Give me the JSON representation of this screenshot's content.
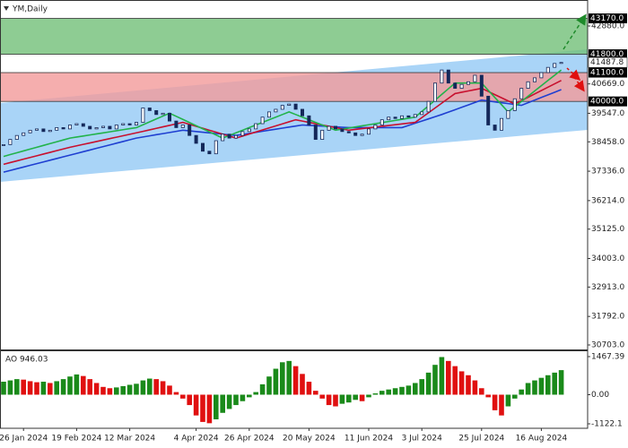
{
  "chart_data": [
    {
      "type": "candlestick",
      "title": "YM,Daily",
      "categories": [
        null,
        null,
        null,
        "26 Jan 2024",
        null,
        null,
        null,
        null,
        null,
        null,
        null,
        "19 Feb 2024",
        null,
        null,
        null,
        null,
        null,
        null,
        null,
        "12 Mar 2024",
        null,
        null,
        null,
        null,
        null,
        null,
        null,
        null,
        null,
        "4 Apr 2024",
        null,
        null,
        null,
        null,
        null,
        null,
        null,
        "26 Apr 2024",
        null,
        null,
        null,
        null,
        null,
        null,
        null,
        null,
        "20 May 2024",
        null,
        null,
        null,
        null,
        null,
        null,
        null,
        null,
        "11 Jun 2024",
        null,
        null,
        null,
        null,
        null,
        null,
        null,
        "3 Jul 2024",
        null,
        null,
        null,
        null,
        null,
        null,
        null,
        null,
        "25 Jul 2024",
        null,
        null,
        null,
        null,
        null,
        null,
        null,
        null,
        "16 Aug 2024",
        null,
        null,
        null
      ],
      "close": [
        38350,
        38550,
        38700,
        38800,
        38900,
        38950,
        38850,
        38900,
        39000,
        38950,
        39100,
        39150,
        39050,
        38950,
        39000,
        39050,
        38950,
        39100,
        39150,
        39100,
        39200,
        39750,
        39650,
        39500,
        39550,
        39250,
        39000,
        39100,
        38700,
        38400,
        38100,
        38000,
        38500,
        38750,
        38600,
        38700,
        38850,
        38950,
        39150,
        39400,
        39600,
        39700,
        39850,
        39900,
        39700,
        39450,
        39100,
        38550,
        38900,
        39050,
        38950,
        38850,
        38800,
        38700,
        38750,
        38950,
        39100,
        39300,
        39400,
        39350,
        39450,
        39400,
        39500,
        39600,
        40000,
        40700,
        41200,
        40700,
        40500,
        40650,
        40750,
        41000,
        40200,
        39100,
        38900,
        39350,
        39650,
        40100,
        40500,
        40750,
        40900,
        41100,
        41300,
        41450,
        41487.8
      ],
      "candle_color": "#14285a",
      "series": [
        {
          "color": "#1f3fd1",
          "values": [
            37300,
            37365,
            37430,
            37495,
            37560,
            37625,
            37690,
            37755,
            37820,
            37885,
            37950,
            38015,
            38080,
            38145,
            38210,
            38275,
            38340,
            38405,
            38470,
            38535,
            38600,
            38643,
            38686,
            38729,
            38771,
            38814,
            38857,
            38900,
            38875,
            38850,
            38825,
            38800,
            38775,
            38750,
            38725,
            38700,
            38740,
            38780,
            38820,
            38860,
            38900,
            38940,
            38980,
            39020,
            39060,
            39100,
            39086,
            39071,
            39057,
            39043,
            39029,
            39014,
            39000,
            39000,
            39000,
            39000,
            39000,
            39000,
            39000,
            39000,
            39000,
            39083,
            39167,
            39250,
            39333,
            39417,
            39500,
            39592,
            39683,
            39775,
            39867,
            39958,
            40050,
            40017,
            39983,
            39950,
            39917,
            39883,
            39850,
            39950,
            40050,
            40150,
            40250,
            40350,
            40450
          ]
        },
        {
          "color": "#c8102e",
          "values": [
            37600,
            37665,
            37730,
            37795,
            37860,
            37925,
            37990,
            38055,
            38120,
            38185,
            38250,
            38305,
            38360,
            38415,
            38470,
            38525,
            38580,
            38635,
            38690,
            38745,
            38800,
            38857,
            38914,
            38971,
            39029,
            39086,
            39143,
            39200,
            39125,
            39050,
            38975,
            38900,
            38825,
            38750,
            38675,
            38600,
            38678,
            38756,
            38833,
            38911,
            38989,
            39067,
            39144,
            39222,
            39300,
            39250,
            39200,
            39150,
            39100,
            39050,
            39000,
            38950,
            38900,
            38930,
            38960,
            38990,
            39020,
            39050,
            39080,
            39110,
            39140,
            39170,
            39200,
            39383,
            39567,
            39750,
            39933,
            40117,
            40300,
            40350,
            40400,
            40450,
            40500,
            40380,
            40260,
            40140,
            40020,
            39900,
            40029,
            40157,
            40286,
            40414,
            40543,
            40671,
            40800
          ]
        },
        {
          "color": "#22b34a",
          "values": [
            37900,
            37970,
            38040,
            38110,
            38180,
            38250,
            38320,
            38390,
            38460,
            38530,
            38600,
            38640,
            38680,
            38720,
            38760,
            38800,
            38840,
            38880,
            38920,
            38960,
            39000,
            39110,
            39220,
            39330,
            39440,
            39550,
            39431,
            39313,
            39194,
            39075,
            38956,
            38838,
            38719,
            38600,
            38700,
            38800,
            38900,
            39000,
            39100,
            39200,
            39300,
            39400,
            39500,
            39600,
            39500,
            39400,
            39300,
            39200,
            39100,
            39000,
            38900,
            38942,
            38983,
            39025,
            39067,
            39108,
            39150,
            39192,
            39233,
            39275,
            39317,
            39358,
            39400,
            39617,
            39833,
            40050,
            40267,
            40483,
            40700,
            40700,
            40700,
            40700,
            40700,
            40425,
            40150,
            39875,
            39600,
            39800,
            40000,
            40200,
            40400,
            40600,
            40800,
            41000,
            41200
          ]
        }
      ],
      "ylim": [
        30532,
        43769
      ],
      "yticks": [
        {
          "value": 42880,
          "label": "42880.0"
        },
        {
          "value": 40669,
          "label": "40669.0"
        },
        {
          "value": 39547,
          "label": "39547.0"
        },
        {
          "value": 38458,
          "label": "38458.0"
        },
        {
          "value": 37336,
          "label": "37336.0"
        },
        {
          "value": 36214,
          "label": "36214.0"
        },
        {
          "value": 35125,
          "label": "35125.0"
        },
        {
          "value": 34003,
          "label": "34003.0"
        },
        {
          "value": 32913,
          "label": "32913.0"
        },
        {
          "value": 31792,
          "label": "31792.0"
        },
        {
          "value": 30703,
          "label": "30703.0"
        }
      ],
      "last_price": 41487.8,
      "zones": [
        {
          "low": {
            "value": 41800,
            "label": "41800.0"
          },
          "high": {
            "value": 43170,
            "label": "43170.0"
          },
          "color": "#72bf78"
        },
        {
          "low": {
            "value": 40000,
            "label": "40000.0"
          },
          "high": {
            "value": 41100,
            "label": "41100.0"
          },
          "color": "#f29a9a"
        }
      ],
      "channel": {
        "color": "#a9d4f7",
        "upper": [
          39939,
          41991
        ],
        "lower": [
          36929,
          38913
        ]
      }
    },
    {
      "type": "bar",
      "title": "AO 946.03",
      "values": [
        500,
        550,
        600,
        580,
        520,
        480,
        500,
        450,
        520,
        600,
        700,
        780,
        720,
        600,
        450,
        300,
        250,
        280,
        330,
        380,
        420,
        550,
        620,
        600,
        520,
        350,
        100,
        -150,
        -400,
        -800,
        -1050,
        -1100,
        -950,
        -700,
        -550,
        -400,
        -250,
        -100,
        100,
        400,
        700,
        1000,
        1250,
        1300,
        1100,
        800,
        500,
        150,
        -150,
        -400,
        -450,
        -350,
        -300,
        -200,
        -250,
        -100,
        50,
        150,
        200,
        250,
        300,
        350,
        450,
        600,
        850,
        1150,
        1450,
        1300,
        1100,
        900,
        750,
        550,
        250,
        -100,
        -600,
        -800,
        -450,
        -150,
        200,
        450,
        550,
        650,
        750,
        850,
        946.03
      ],
      "up_color": "#1a8a1a",
      "down_color": "#e01010",
      "ylim": [
        -1295,
        1640
      ],
      "yticks": [
        1467.39,
        {
          "value": 0,
          "label": "0.00"
        },
        -1122.1
      ]
    }
  ]
}
